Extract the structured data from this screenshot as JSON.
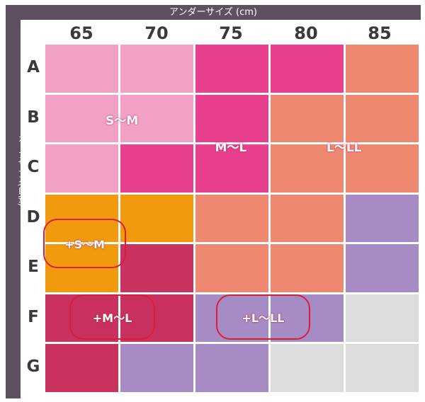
{
  "chart_data": {
    "type": "heatmap",
    "x_axis_title": "アンダーサイズ (cm)",
    "y_axis_title": "カップサイズ(目安)",
    "columns": [
      "65",
      "70",
      "75",
      "80",
      "85"
    ],
    "rows": [
      "A",
      "B",
      "C",
      "D",
      "E",
      "F",
      "G"
    ],
    "size_colors": {
      "S〜M": "#f1a0c6",
      "M〜L": "#e8408f",
      "L〜LL": "#ee8870",
      "+S〜M": "#f29a0d",
      "+M〜L": "#c9325f",
      "+L〜LL": "#a78bc4",
      "none": "#dcdcdc"
    },
    "cells": [
      [
        "S〜M",
        "S〜M",
        "M〜L",
        "M〜L",
        "L〜LL"
      ],
      [
        "S〜M",
        "S〜M",
        "M〜L",
        "L〜LL",
        "L〜LL"
      ],
      [
        "S〜M",
        "M〜L",
        "M〜L",
        "L〜LL",
        "L〜LL"
      ],
      [
        "+S〜M",
        "+S〜M",
        "L〜LL",
        "L〜LL",
        "+L〜LL"
      ],
      [
        "+S〜M",
        "+M〜L",
        "L〜LL",
        "L〜LL",
        "+L〜LL"
      ],
      [
        "+M〜L",
        "+M〜L",
        "+L〜LL",
        "+L〜LL",
        "none"
      ],
      [
        "+M〜L",
        "+L〜LL",
        "+L〜LL",
        "none",
        "none"
      ]
    ],
    "region_labels": [
      "S〜M",
      "M〜L",
      "L〜LL"
    ],
    "highlighted_labels": [
      "+S〜M",
      "+M〜L",
      "+L〜LL"
    ]
  }
}
